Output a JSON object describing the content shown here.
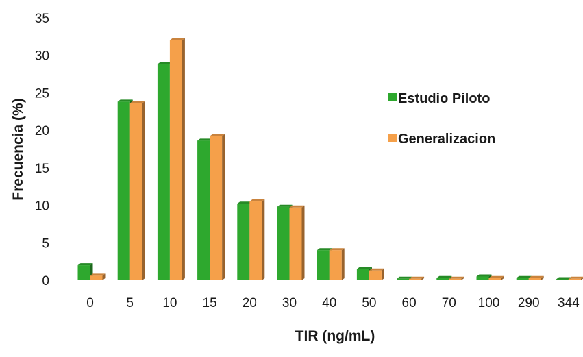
{
  "chart_data": {
    "type": "bar",
    "style": "3d-clustered-column",
    "categories": [
      "0",
      "5",
      "10",
      "15",
      "20",
      "30",
      "40",
      "50",
      "60",
      "70",
      "100",
      "290",
      "344"
    ],
    "series": [
      {
        "name": "Estudio Piloto",
        "color": "#2ea82e",
        "values": [
          2.0,
          23.8,
          28.8,
          18.6,
          10.2,
          9.8,
          4.0,
          1.5,
          0.2,
          0.3,
          0.5,
          0.3,
          0.1
        ]
      },
      {
        "name": "Generalizacion",
        "color": "#f5a04a",
        "values": [
          0.6,
          23.6,
          32.0,
          19.2,
          10.5,
          9.7,
          4.0,
          1.3,
          0.2,
          0.2,
          0.3,
          0.3,
          0.2
        ]
      }
    ],
    "xlabel": "TIR (ng/mL)",
    "ylabel": "Frecuencia (%)",
    "yticks": [
      "0",
      "5",
      "10",
      "15",
      "20",
      "25",
      "30",
      "35"
    ],
    "ylim": [
      0,
      35
    ],
    "grid": false,
    "legend_position": "right"
  }
}
